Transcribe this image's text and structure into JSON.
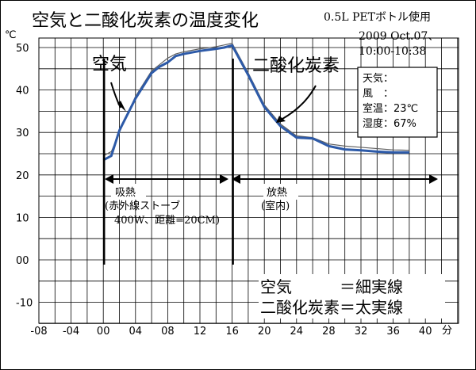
{
  "chart_data": {
    "type": "line",
    "title": "空気と二酸化炭素の温度変化",
    "subtitle_lines": [
      "0.5L PETボトル使用",
      "2009 Oct.07、",
      "10:00-10:38"
    ],
    "y_unit_label": "℃",
    "x_unit_label": "分",
    "xlim": [
      -8,
      40
    ],
    "ylim": [
      -15,
      52
    ],
    "x_ticks": [
      -8,
      -4,
      0,
      4,
      8,
      12,
      16,
      20,
      24,
      28,
      32,
      36,
      40
    ],
    "x_tick_labels": [
      "-08",
      "-04",
      "00",
      "04",
      "08",
      "12",
      "16",
      "20",
      "24",
      "28",
      "32",
      "36",
      "40"
    ],
    "y_ticks": [
      -10,
      0,
      10,
      20,
      30,
      40,
      50
    ],
    "y_tick_labels": [
      "-10",
      "00",
      "10",
      "20",
      "30",
      "40",
      "50"
    ],
    "grid": true,
    "series": [
      {
        "name": "空気",
        "style": "細実線",
        "color": "#606060",
        "x": [
          0,
          1,
          2,
          4,
          6,
          7,
          8,
          9,
          10,
          12,
          14,
          15,
          16,
          18,
          20,
          22,
          24,
          26,
          28,
          30,
          32,
          34,
          36,
          38
        ],
        "y": [
          24.5,
          25.5,
          30,
          38.5,
          44.5,
          46,
          47.5,
          48.5,
          49,
          49.7,
          50.2,
          50.6,
          51,
          44,
          36.5,
          32,
          29.2,
          28.8,
          27.3,
          26.8,
          26.5,
          26.2,
          25.9,
          25.8
        ]
      },
      {
        "name": "二酸化炭素",
        "style": "太実線",
        "color": "#2d5aa8",
        "x": [
          0,
          1,
          2,
          4,
          6,
          7,
          8,
          9,
          10,
          12,
          14,
          15,
          16,
          18,
          20,
          22,
          24,
          26,
          28,
          30,
          32,
          34,
          36,
          38
        ],
        "y": [
          23.5,
          24.5,
          30.5,
          38,
          44,
          45.5,
          46.5,
          48,
          48.5,
          49.2,
          49.7,
          50,
          50.5,
          43.5,
          36,
          31.5,
          28.8,
          28.6,
          26.8,
          26.0,
          25.8,
          25.5,
          25.3,
          25.3
        ]
      }
    ],
    "vertical_markers": [
      0,
      16
    ],
    "annotations": {
      "air_label": "空気",
      "co2_label": "二酸化炭素",
      "heat_absorb": "吸熱",
      "heat_absorb_detail_1": "(赤外線ストーブ",
      "heat_absorb_detail_2": "400W、距離=20CM)",
      "heat_release": "放熱",
      "heat_release_detail": "(室内)"
    },
    "weather_box": {
      "weather": "天気：",
      "wind": "風　：",
      "room_temp": "室温：23℃",
      "humidity": "湿度：67%"
    },
    "legend_text": {
      "air": "空気　　　＝細実線",
      "co2": "二酸化炭素＝太実線"
    }
  }
}
